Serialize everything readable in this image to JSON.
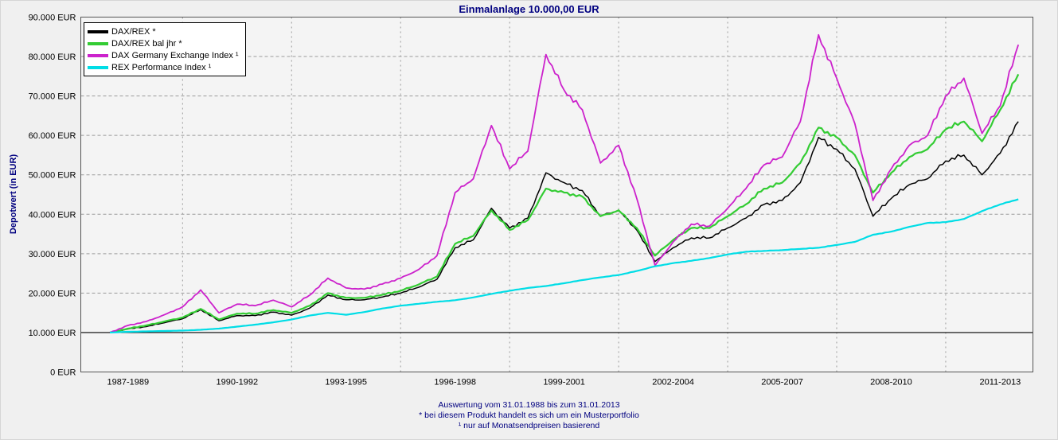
{
  "title": "Einmalanlage 10.000,00 EUR",
  "footer": {
    "line1": "Auswertung vom 31.01.1988 bis zum 31.01.2013",
    "line2": "* bei diesem Produkt handelt es sich um ein Musterportfolio",
    "line3": "¹ nur auf Monatsendpreisen basierend"
  },
  "colors": {
    "title_text": "#000080",
    "footer_text": "#000080",
    "plot_background": "#f4f4f4",
    "page_background": "#f0f0f0",
    "gridline": "#9a9a9a",
    "baseline": "#000000"
  },
  "chart_data": {
    "type": "line",
    "title": "Einmalanlage 10.000,00 EUR",
    "xlabel": "",
    "ylabel": "Depotwert (in EUR)",
    "ylim": [
      0,
      90000
    ],
    "x_range": [
      1987.2,
      2013.4
    ],
    "baseline_value": 10000,
    "grid": true,
    "legend_position": "top-left",
    "grid_years": [
      1990,
      1993,
      1996,
      1999,
      2002,
      2005,
      2008,
      2011
    ],
    "y_tick_values": [
      0,
      10000,
      20000,
      30000,
      40000,
      50000,
      60000,
      70000,
      80000,
      90000
    ],
    "y_tick_labels": [
      "0 EUR",
      "10.000 EUR",
      "20.000 EUR",
      "30.000 EUR",
      "40.000 EUR",
      "50.000 EUR",
      "60.000 EUR",
      "70.000 EUR",
      "80.000 EUR",
      "90.000 EUR"
    ],
    "x_tick_labels": [
      "1987-1989",
      "1990-1992",
      "1993-1995",
      "1996-1998",
      "1999-2001",
      "2002-2004",
      "2005-2007",
      "2008-2010",
      "2011-2013"
    ],
    "x_tick_centers": [
      1988.5,
      1991.5,
      1994.5,
      1997.5,
      2000.5,
      2003.5,
      2006.5,
      2009.5,
      2012.5
    ],
    "x": [
      1988,
      1988.5,
      1989,
      1989.5,
      1990,
      1990.5,
      1991,
      1991.5,
      1992,
      1992.5,
      1993,
      1993.5,
      1994,
      1994.5,
      1995,
      1995.5,
      1996,
      1996.5,
      1997,
      1997.5,
      1998,
      1998.5,
      1999,
      1999.5,
      2000,
      2000.5,
      2001,
      2001.5,
      2002,
      2002.5,
      2003,
      2003.5,
      2004,
      2004.5,
      2005,
      2005.5,
      2006,
      2006.5,
      2007,
      2007.5,
      2008,
      2008.5,
      2009,
      2009.5,
      2010,
      2010.5,
      2011,
      2011.5,
      2012,
      2012.5,
      2013
    ],
    "series": [
      {
        "name": "DAX/REX *",
        "color": "#000000",
        "width": 1.5,
        "values": [
          10000,
          10900,
          11500,
          12500,
          13500,
          15800,
          13000,
          14300,
          14300,
          15200,
          14400,
          16200,
          19500,
          18300,
          18300,
          19000,
          20000,
          21500,
          23500,
          31500,
          33500,
          41500,
          36500,
          39000,
          50500,
          48000,
          46000,
          39500,
          41000,
          36000,
          28000,
          31500,
          34000,
          34000,
          36500,
          39000,
          42500,
          43500,
          48000,
          59500,
          56500,
          51500,
          39500,
          44000,
          47500,
          49000,
          53500,
          55000,
          50000,
          55500,
          63500
        ]
      },
      {
        "name": "DAX/REX bal jhr *",
        "color": "#33cc33",
        "width": 2.2,
        "values": [
          10000,
          11000,
          11800,
          12800,
          13800,
          16000,
          13300,
          14800,
          14800,
          15700,
          15000,
          16800,
          20000,
          18800,
          18800,
          19600,
          20600,
          22200,
          24200,
          32500,
          34500,
          41000,
          36000,
          38500,
          46500,
          45500,
          44500,
          39500,
          41000,
          36500,
          29500,
          33500,
          36500,
          36500,
          39500,
          42500,
          46500,
          48000,
          53000,
          62000,
          59500,
          55000,
          45500,
          50500,
          54500,
          56500,
          61500,
          63500,
          58500,
          66500,
          75500
        ]
      },
      {
        "name": "DAX Germany Exchange Index ¹",
        "color": "#cc22cc",
        "width": 1.8,
        "values": [
          10000,
          11800,
          12800,
          14500,
          16500,
          20800,
          15000,
          17200,
          16800,
          18200,
          16500,
          19500,
          23800,
          21300,
          21000,
          22300,
          23800,
          26000,
          29500,
          45500,
          49000,
          62500,
          51500,
          56000,
          80500,
          71500,
          66500,
          53000,
          57500,
          44000,
          27000,
          33000,
          37500,
          37000,
          41500,
          46500,
          52500,
          54500,
          63500,
          85500,
          74500,
          63000,
          43500,
          51500,
          57500,
          60000,
          70000,
          74500,
          60500,
          67500,
          83000
        ]
      },
      {
        "name": "REX Performance Index ¹",
        "color": "#00dde6",
        "width": 2.2,
        "values": [
          10000,
          10200,
          10300,
          10400,
          10500,
          10700,
          11000,
          11500,
          12000,
          12600,
          13300,
          14300,
          15000,
          14500,
          15200,
          16100,
          16800,
          17300,
          17800,
          18200,
          18900,
          19800,
          20600,
          21300,
          21800,
          22500,
          23300,
          24000,
          24600,
          25600,
          26800,
          27600,
          28200,
          28900,
          29800,
          30500,
          30700,
          30900,
          31200,
          31500,
          32200,
          33000,
          34800,
          35600,
          36800,
          37800,
          38000,
          38800,
          40800,
          42500,
          43800
        ]
      }
    ]
  }
}
